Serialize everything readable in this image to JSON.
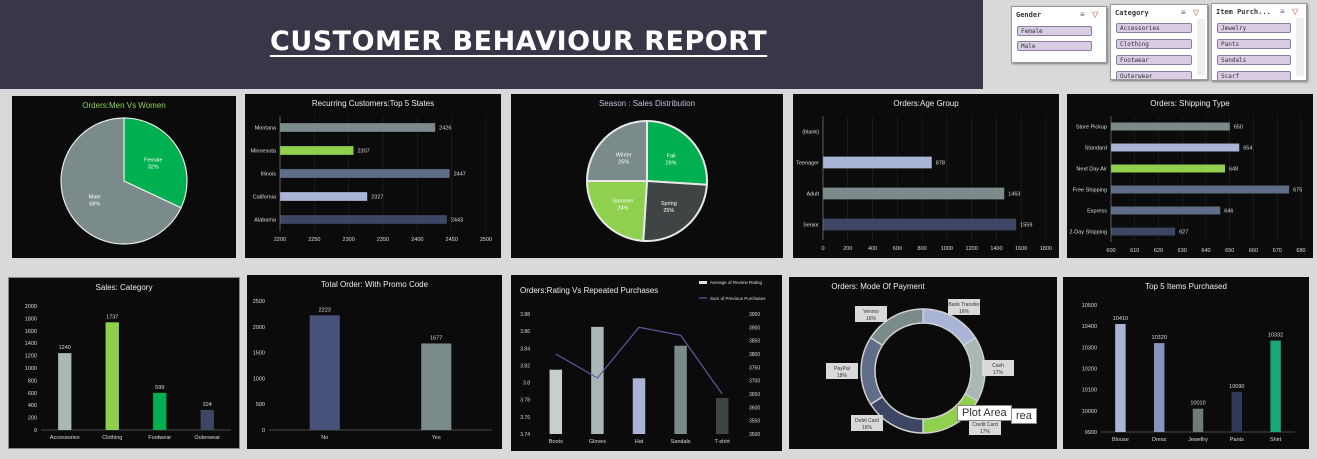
{
  "report": {
    "title": "CUSTOMER BEHAVIOUR REPORT"
  },
  "slicers": [
    {
      "title": "Gender",
      "items": [
        "Female",
        "Male"
      ]
    },
    {
      "title": "Category",
      "items": [
        "Accessories",
        "Clothing",
        "Footwear",
        "Outerwear"
      ]
    },
    {
      "title": "Item Purch...",
      "items": [
        "Jewelry",
        "Pants",
        "Sandals",
        "Scarf"
      ]
    }
  ],
  "tooltip": {
    "text": "Plot Area",
    "behind_text": "rea"
  },
  "colors": {
    "banner": "#3b3548",
    "panel": "#0b0b0b",
    "green": "#8fd14f",
    "dark_green": "#00b050",
    "slate": "#5e6e89",
    "lavender": "#a9b4d6",
    "gray": "#7b8a8a"
  },
  "chart_data": [
    {
      "id": "gender",
      "type": "pie",
      "title": "Orders:Men Vs Women",
      "slices": [
        {
          "label": "Female",
          "value": 32
        },
        {
          "label": "Male",
          "value": 68
        }
      ]
    },
    {
      "id": "states",
      "type": "bar",
      "orientation": "horizontal",
      "title": "Recurring Customers:Top 5 States",
      "categories": [
        "Montana",
        "Minnesota",
        "Illinois",
        "California",
        "Alabama"
      ],
      "values": [
        2426,
        2307,
        2447,
        2327,
        2443
      ],
      "xlim": [
        2200,
        2500
      ],
      "xticks": [
        "2200",
        "2250",
        "2300",
        "2350",
        "2400",
        "2450",
        "2500"
      ]
    },
    {
      "id": "season",
      "type": "pie",
      "title": "Season : Sales Distribution",
      "slices": [
        {
          "label": "Fall",
          "value": 26
        },
        {
          "label": "Spring",
          "value": 25
        },
        {
          "label": "Summer",
          "value": 24
        },
        {
          "label": "Winter",
          "value": 25
        }
      ]
    },
    {
      "id": "age",
      "type": "bar",
      "orientation": "horizontal",
      "title": "Orders:Age Group",
      "categories": [
        "(blank)",
        "Teenager",
        "Adult",
        "Senior"
      ],
      "values": [
        null,
        878,
        1463,
        1559
      ],
      "xlim": [
        0,
        1800
      ],
      "xticks": [
        "0",
        "200",
        "400",
        "600",
        "800",
        "1000",
        "1200",
        "1400",
        "1600",
        "1800"
      ]
    },
    {
      "id": "shipping",
      "type": "bar",
      "orientation": "horizontal",
      "title": "Orders: Shipping Type",
      "categories": [
        "Store Pickup",
        "Standard",
        "Next Day Air",
        "Free Shipping",
        "Express",
        "2-Day Shipping"
      ],
      "values": [
        650,
        654,
        648,
        675,
        646,
        627
      ],
      "xlim": [
        600,
        680
      ],
      "xticks": [
        "600",
        "610",
        "620",
        "630",
        "640",
        "650",
        "660",
        "670",
        "680"
      ]
    },
    {
      "id": "category",
      "type": "bar",
      "title": "Sales: Category",
      "categories": [
        "Accessories",
        "Clothing",
        "Footwear",
        "Outerwear"
      ],
      "values": [
        1240,
        1737,
        599,
        324
      ],
      "ylim": [
        0,
        2000
      ],
      "yticks": [
        "0",
        "200",
        "400",
        "600",
        "800",
        "1000",
        "1200",
        "1400",
        "1600",
        "1800",
        "2000"
      ]
    },
    {
      "id": "promo",
      "type": "bar",
      "title": "Total Order: With Promo Code",
      "categories": [
        "No",
        "Yes"
      ],
      "values": [
        2223,
        1677
      ],
      "ylim": [
        0,
        2500
      ],
      "yticks": [
        "0",
        "500",
        "1000",
        "1500",
        "2000",
        "2500"
      ]
    },
    {
      "id": "rating",
      "type": "bar",
      "title": "Orders:Rating Vs Repeated Purchases",
      "categories": [
        "Boots",
        "Gloves",
        "Hat",
        "Sandals",
        "T-shirt"
      ],
      "series": [
        {
          "name": "Average of Review Rating",
          "kind": "bar",
          "axis": "left",
          "values": [
            3.815,
            3.865,
            3.805,
            3.843,
            3.782
          ]
        },
        {
          "name": "Sum of Previous Purchases",
          "kind": "line",
          "axis": "right",
          "values": [
            3800,
            3710,
            3900,
            3870,
            3650
          ]
        }
      ],
      "ylim": [
        3.74,
        3.88
      ],
      "yticks": [
        "3.74",
        "3.76",
        "3.78",
        "3.8",
        "3.82",
        "3.84",
        "3.86",
        "3.88"
      ],
      "y2lim": [
        3500,
        3950
      ],
      "y2ticks": [
        "3500",
        "3550",
        "3600",
        "3650",
        "3700",
        "3750",
        "3800",
        "3850",
        "3900",
        "3950"
      ]
    },
    {
      "id": "payment",
      "type": "pie",
      "donut": true,
      "title": "Orders: Mode Of Payment",
      "slices": [
        {
          "label": "Bank Transfer",
          "value": 16
        },
        {
          "label": "Cash",
          "value": 17
        },
        {
          "label": "Credit Card",
          "value": 17
        },
        {
          "label": "Debit Card",
          "value": 16
        },
        {
          "label": "PayPal",
          "value": 18
        },
        {
          "label": "Venmo",
          "value": 16
        }
      ]
    },
    {
      "id": "items",
      "type": "bar",
      "title": "Top 5 Items Purchased",
      "categories": [
        "Blouse",
        "Dress",
        "Jewellry",
        "Pants",
        "Shirt"
      ],
      "values": [
        10410,
        10320,
        10010,
        10090,
        10332
      ],
      "ylim": [
        9900,
        10500
      ],
      "yticks": [
        "9900",
        "10000",
        "10100",
        "10200",
        "10300",
        "10400",
        "10500"
      ]
    }
  ]
}
